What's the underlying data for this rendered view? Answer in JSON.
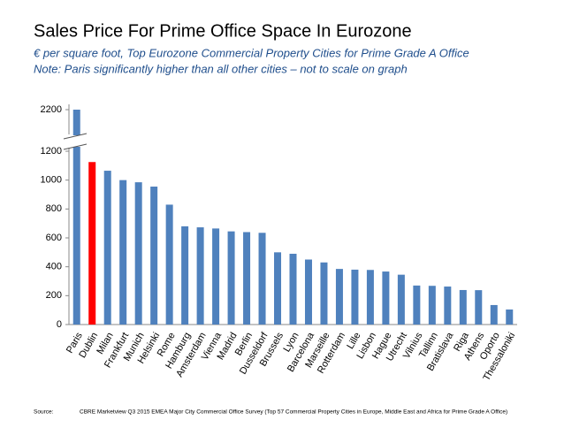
{
  "chart_data": {
    "type": "bar",
    "title": "Sales Price For Prime Office Space In Eurozone",
    "subtitle": "€ per square foot, Top Eurozone Commercial Property Cities for Prime Grade A Office",
    "note": "Note: Paris significantly higher than all other cities – not to scale on graph",
    "categories": [
      "Paris",
      "Dublin",
      "Milan",
      "Frankfurt",
      "Munich",
      "Helsinki",
      "Rome",
      "Hamburg",
      "Amsterdam",
      "Vienna",
      "Madrid",
      "Berlin",
      "Dusseldorf",
      "Brussels",
      "Lyon",
      "Barcelona",
      "Marseille",
      "Rotterdam",
      "Lille",
      "Lisbon",
      "Hague",
      "Utrecht",
      "Vilnius",
      "Tallinn",
      "Bratislava",
      "Riga",
      "Athens",
      "Oporto",
      "Thessaloniki"
    ],
    "values": [
      2200,
      1125,
      1065,
      1000,
      985,
      955,
      830,
      680,
      673,
      665,
      645,
      640,
      635,
      500,
      490,
      450,
      430,
      385,
      380,
      378,
      367,
      345,
      270,
      268,
      263,
      239,
      238,
      135,
      104
    ],
    "colors": [
      "#4f81bd",
      "#ff0000",
      "#4f81bd",
      "#4f81bd",
      "#4f81bd",
      "#4f81bd",
      "#4f81bd",
      "#4f81bd",
      "#4f81bd",
      "#4f81bd",
      "#4f81bd",
      "#4f81bd",
      "#4f81bd",
      "#4f81bd",
      "#4f81bd",
      "#4f81bd",
      "#4f81bd",
      "#4f81bd",
      "#4f81bd",
      "#4f81bd",
      "#4f81bd",
      "#4f81bd",
      "#4f81bd",
      "#4f81bd",
      "#4f81bd",
      "#4f81bd",
      "#4f81bd",
      "#4f81bd",
      "#4f81bd"
    ],
    "ylim": [
      0,
      2200
    ],
    "yticks": [
      0,
      200,
      400,
      600,
      800,
      1000,
      1200,
      2200
    ],
    "grid": false,
    "source_label": "Source:",
    "source": "CBRE Marketview Q3 2015 EMEA Major City Commercial Office Survey (Top 57 Commercial Property Cities in Europe, Middle East and Africa for Prime Grade A Office)"
  }
}
